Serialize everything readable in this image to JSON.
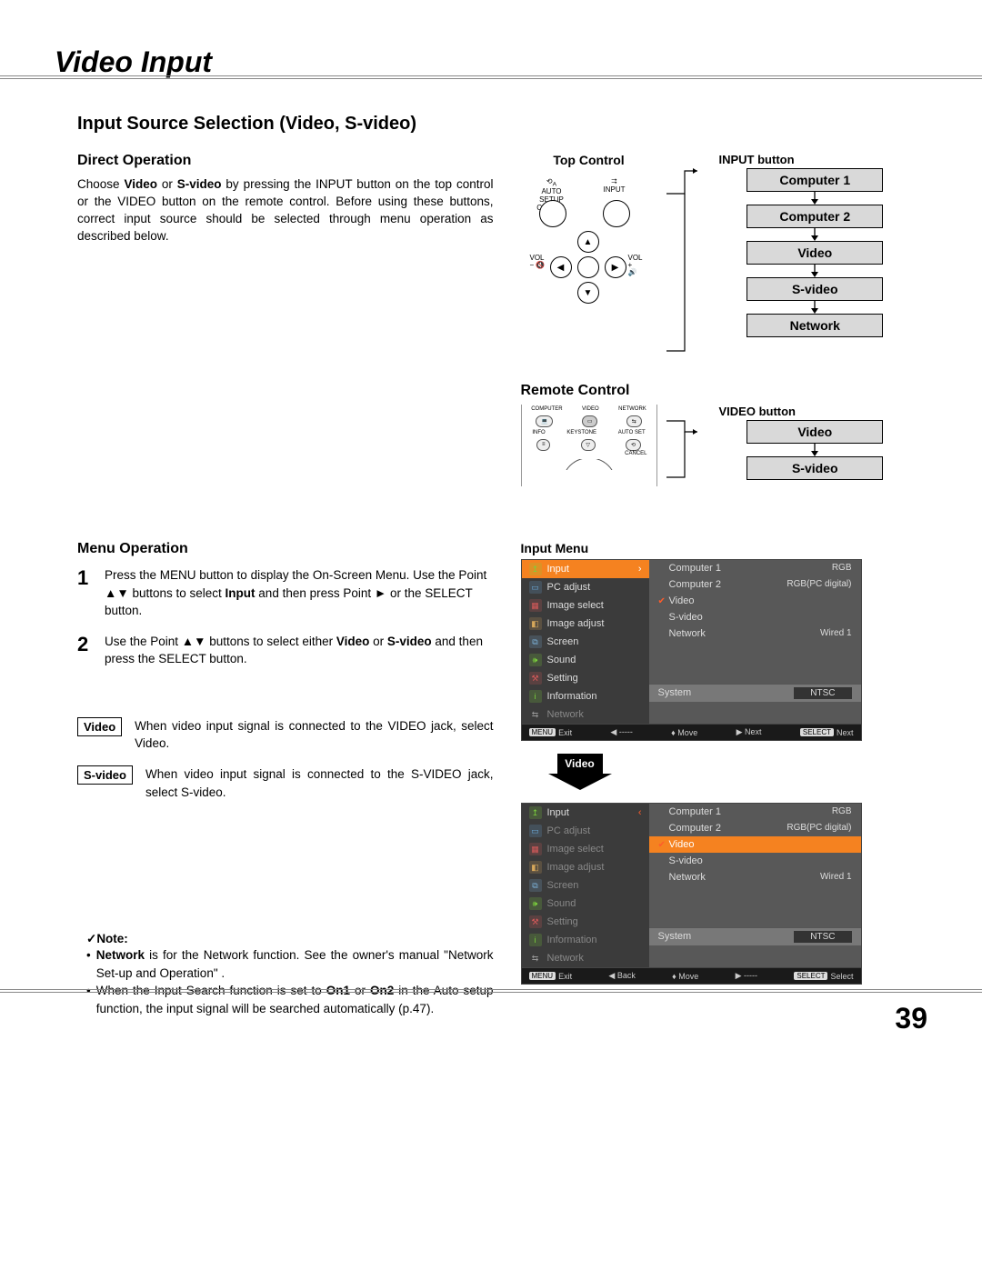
{
  "page_number": "39",
  "chapter": "Video Input",
  "section_title": "Input Source Selection (Video, S-video)",
  "direct_op": {
    "heading": "Direct Operation",
    "text": "Choose Video or S-video by pressing the INPUT button on the top control or the VIDEO button on the remote control. Before using these buttons, correct input source should be selected through menu operation as described below."
  },
  "top_control": {
    "heading": "Top Control",
    "btn_label": "INPUT button",
    "auto_setup": "AUTO SETUP",
    "cancel": "CANCEL",
    "input_lbl": "INPUT",
    "vol_minus": "VOL\n−",
    "vol_plus": "VOL\n+",
    "flow": [
      "Computer 1",
      "Computer 2",
      "Video",
      "S-video",
      "Network"
    ]
  },
  "remote": {
    "heading": "Remote Control",
    "btn_label": "VIDEO button",
    "btns": {
      "computer": "COMPUTER",
      "video": "VIDEO",
      "network": "NETWORK",
      "info": "INFO",
      "keystone": "KEYSTONE",
      "autoset": "AUTO SET",
      "cancel": "CANCEL"
    },
    "flow": [
      "Video",
      "S-video"
    ]
  },
  "menu_op": {
    "heading": "Menu Operation",
    "steps": [
      "Press the MENU button to display the On-Screen Menu. Use the Point ▲▼ buttons to select Input and then press Point ► or the SELECT button.",
      "Use the Point ▲▼ buttons to select either Video or S-video and then press the SELECT button."
    ],
    "defs": [
      {
        "label": "Video",
        "text": "When video input signal is connected to the VIDEO jack, select Video."
      },
      {
        "label": "S-video",
        "text": "When video input signal is connected to the S-VIDEO jack, select S-video."
      }
    ],
    "note_heading": "Note:",
    "notes": [
      "Network is for the Network function. See the owner's manual \"Network Set-up and Operation\" .",
      "When the Input Search function is set to On1 or On2 in the Auto setup function, the input signal will be searched automatically (p.47)."
    ]
  },
  "osd": {
    "title": "Input Menu",
    "left_items": [
      {
        "icon": "↥",
        "color": "#7bd13c",
        "label": "Input"
      },
      {
        "icon": "▭",
        "color": "#6aa7d6",
        "label": "PC adjust"
      },
      {
        "icon": "▦",
        "color": "#d65a5a",
        "label": "Image select"
      },
      {
        "icon": "◧",
        "color": "#d6a75a",
        "label": "Image adjust"
      },
      {
        "icon": "⧉",
        "color": "#7bb0d6",
        "label": "Screen"
      },
      {
        "icon": "🕪",
        "color": "#7bd13c",
        "label": "Sound"
      },
      {
        "icon": "⚒",
        "color": "#d65a5a",
        "label": "Setting"
      },
      {
        "icon": "i",
        "color": "#7bd13c",
        "label": "Information"
      },
      {
        "icon": "⇆",
        "color": "#999",
        "label": "Network"
      }
    ],
    "right_rows": [
      {
        "l": "Computer 1",
        "r": "RGB"
      },
      {
        "l": "Computer 2",
        "r": "RGB(PC digital)"
      },
      {
        "l": "Video",
        "r": ""
      },
      {
        "l": "S-video",
        "r": ""
      },
      {
        "l": "Network",
        "r": "Wired 1"
      }
    ],
    "checked_index_1": 2,
    "checked_index_2": 2,
    "system_label": "System",
    "system_value": "NTSC",
    "foot1": {
      "exit": "Exit",
      "back": "-----",
      "move": "Move",
      "next": "Next",
      "select": "Next"
    },
    "foot2": {
      "exit": "Exit",
      "back": "Back",
      "move": "Move",
      "next": "-----",
      "select": "Select"
    },
    "arrow_label": "Video",
    "menu_kbd": "MENU",
    "select_kbd": "SELECT"
  }
}
